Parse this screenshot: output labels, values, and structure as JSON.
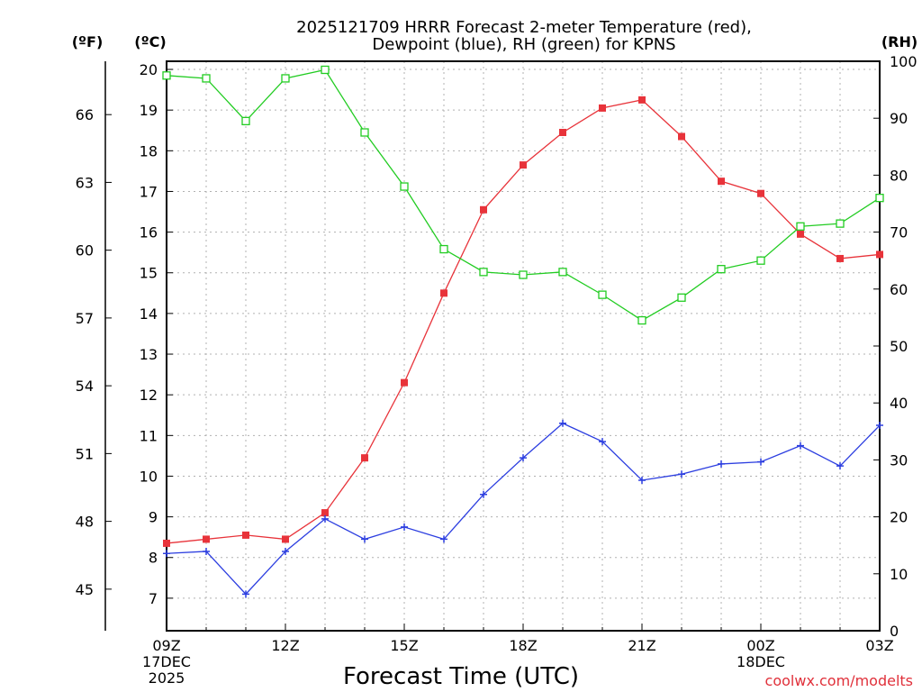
{
  "chart_data": {
    "type": "line",
    "title_line1": "2025121709 HRRR Forecast 2-meter Temperature (red),",
    "title_line2": "Dewpoint (blue), RH (green) for KPNS",
    "xlabel": "Forecast Time (UTC)",
    "unit_f": "(ºF)",
    "unit_c": "(ºC)",
    "unit_rh": "(RH)",
    "credit": "coolwx.com/modelts",
    "x_hours": [
      0,
      1,
      2,
      3,
      4,
      5,
      6,
      7,
      8,
      9,
      10,
      11,
      12,
      13,
      14,
      15,
      16,
      17,
      18
    ],
    "x_ticks": [
      {
        "h": 0,
        "lines": [
          "09Z",
          "17DEC",
          "2025"
        ]
      },
      {
        "h": 3,
        "lines": [
          "12Z"
        ]
      },
      {
        "h": 6,
        "lines": [
          "15Z"
        ]
      },
      {
        "h": 9,
        "lines": [
          "18Z"
        ]
      },
      {
        "h": 12,
        "lines": [
          "21Z"
        ]
      },
      {
        "h": 15,
        "lines": [
          "00Z",
          "18DEC"
        ]
      },
      {
        "h": 18,
        "lines": [
          "03Z"
        ]
      }
    ],
    "ylim_c": [
      6.2,
      20.2
    ],
    "yticks_c": [
      7,
      8,
      9,
      10,
      11,
      12,
      13,
      14,
      15,
      16,
      17,
      18,
      19,
      20
    ],
    "yticks_f": [
      45,
      48,
      51,
      54,
      57,
      60,
      63,
      66
    ],
    "yticks_rh": [
      0,
      10,
      20,
      30,
      40,
      50,
      60,
      70,
      80,
      90,
      100
    ],
    "series": [
      {
        "name": "Temperature",
        "color": "#e8333a",
        "marker": "filled-square",
        "values": [
          8.35,
          8.45,
          8.55,
          8.45,
          9.1,
          10.45,
          12.3,
          14.5,
          16.55,
          17.65,
          18.45,
          19.05,
          19.25,
          18.35,
          17.25,
          16.95,
          15.95,
          15.35,
          15.45
        ]
      },
      {
        "name": "Dewpoint",
        "color": "#2c3ee0",
        "marker": "plus",
        "values": [
          8.1,
          8.15,
          7.1,
          8.15,
          8.95,
          8.45,
          8.75,
          8.45,
          9.55,
          10.45,
          11.3,
          10.85,
          9.9,
          10.05,
          10.3,
          10.35,
          10.75,
          10.25,
          11.25
        ]
      },
      {
        "name": "RH",
        "color": "#22cc22",
        "marker": "open-square",
        "axis": "rh",
        "values": [
          97.5,
          97,
          89.5,
          97,
          98.5,
          87.5,
          78,
          67,
          63,
          62.5,
          63,
          59,
          54.5,
          58.5,
          63.5,
          65,
          71,
          71.5,
          76
        ]
      }
    ]
  }
}
